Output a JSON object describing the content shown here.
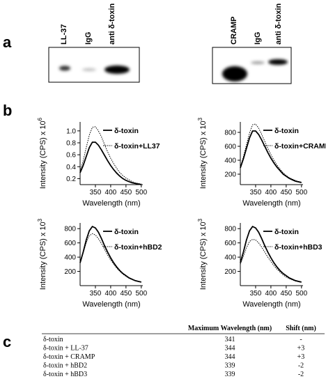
{
  "panel_labels": [
    "a",
    "b",
    "c"
  ],
  "blots": [
    {
      "lanes": [
        "LL-37",
        "IgG",
        "anti δ-toxin"
      ]
    },
    {
      "lanes": [
        "CRAMP",
        "IgG",
        "anti δ-toxin"
      ]
    }
  ],
  "chart_data": [
    {
      "type": "line",
      "y_label": "Intensity (CPS) x 10",
      "y_label_exponent": "6",
      "x_label": "Wavelength (nm)",
      "x": [
        300,
        310,
        320,
        330,
        340,
        350,
        360,
        370,
        380,
        390,
        400,
        410,
        420,
        430,
        440,
        450,
        460,
        470,
        480,
        490,
        500
      ],
      "series": [
        {
          "name": "δ-toxin",
          "style": "solid",
          "color": "#000000",
          "values": [
            0.3,
            0.42,
            0.57,
            0.72,
            0.81,
            0.81,
            0.76,
            0.68,
            0.59,
            0.5,
            0.42,
            0.35,
            0.29,
            0.24,
            0.2,
            0.17,
            0.15,
            0.13,
            0.12,
            0.11,
            0.1
          ]
        },
        {
          "name": "δ-toxin+LL37",
          "style": "dotted",
          "color": "#000000",
          "values": [
            0.32,
            0.5,
            0.72,
            0.93,
            1.06,
            1.07,
            1.0,
            0.9,
            0.77,
            0.65,
            0.54,
            0.45,
            0.37,
            0.3,
            0.25,
            0.21,
            0.18,
            0.15,
            0.13,
            0.12,
            0.11
          ]
        }
      ],
      "xlim": [
        300,
        505
      ],
      "xticks": [
        350,
        400,
        450,
        500
      ],
      "ylim": [
        0.1,
        1.15
      ],
      "yticks": [
        0.2,
        0.4,
        0.6,
        0.8,
        {
          "value": 1,
          "label": "1.0"
        }
      ]
    },
    {
      "type": "line",
      "y_label": "Intensity (CPS) x 10",
      "y_label_exponent": "3",
      "x_label": "Wavelength (nm)",
      "x": [
        300,
        310,
        320,
        330,
        340,
        350,
        360,
        370,
        380,
        390,
        400,
        410,
        420,
        430,
        440,
        450,
        460,
        470,
        480,
        490,
        500
      ],
      "series": [
        {
          "name": "δ-toxin",
          "style": "solid",
          "color": "#000000",
          "values": [
            290,
            420,
            570,
            720,
            820,
            820,
            770,
            690,
            600,
            510,
            430,
            360,
            300,
            250,
            200,
            170,
            140,
            120,
            100,
            90,
            80
          ]
        },
        {
          "name": "δ-toxin+CRAMP",
          "style": "dotted",
          "color": "#000000",
          "values": [
            300,
            450,
            620,
            790,
            910,
            920,
            860,
            770,
            670,
            570,
            480,
            400,
            330,
            270,
            220,
            180,
            150,
            130,
            110,
            95,
            85
          ]
        }
      ],
      "xlim": [
        300,
        505
      ],
      "xticks": [
        350,
        400,
        450,
        500
      ],
      "ylim": [
        50,
        950
      ],
      "yticks": [
        200,
        400,
        600,
        800
      ]
    },
    {
      "type": "line",
      "y_label": "Intensity (CPS) x 10",
      "y_label_exponent": "3",
      "x_label": "Wavelength (nm)",
      "x": [
        300,
        310,
        320,
        330,
        340,
        350,
        360,
        370,
        380,
        390,
        400,
        410,
        420,
        430,
        440,
        450,
        460,
        470,
        480,
        490,
        500
      ],
      "series": [
        {
          "name": "δ-toxin",
          "style": "solid",
          "color": "#000000",
          "values": [
            320,
            470,
            640,
            770,
            830,
            810,
            750,
            660,
            560,
            470,
            390,
            320,
            260,
            210,
            170,
            140,
            110,
            90,
            70,
            60,
            50
          ]
        },
        {
          "name": "δ-toxin+hBD2",
          "style": "dotted",
          "color": "#000000",
          "values": [
            330,
            460,
            600,
            700,
            730,
            710,
            660,
            590,
            510,
            430,
            360,
            300,
            245,
            200,
            160,
            130,
            105,
            85,
            70,
            60,
            50
          ]
        }
      ],
      "xlim": [
        300,
        505
      ],
      "xticks": [
        350,
        400,
        450,
        500
      ],
      "ylim": [
        0,
        880
      ],
      "yticks": [
        200,
        400,
        600,
        800
      ]
    },
    {
      "type": "line",
      "y_label": "Intensity (CPS) x 10",
      "y_label_exponent": "3",
      "x_label": "Wavelength (nm)",
      "x": [
        300,
        310,
        320,
        330,
        340,
        350,
        360,
        370,
        380,
        390,
        400,
        410,
        420,
        430,
        440,
        450,
        460,
        470,
        480,
        490,
        500
      ],
      "series": [
        {
          "name": "δ-toxin",
          "style": "solid",
          "color": "#000000",
          "values": [
            320,
            470,
            640,
            770,
            830,
            810,
            750,
            660,
            560,
            470,
            390,
            320,
            260,
            210,
            170,
            140,
            110,
            90,
            70,
            60,
            50
          ]
        },
        {
          "name": "δ-toxin+hBD3",
          "style": "dotted",
          "color": "#000000",
          "values": [
            300,
            410,
            530,
            620,
            650,
            640,
            600,
            540,
            470,
            400,
            340,
            280,
            230,
            190,
            150,
            120,
            100,
            80,
            65,
            55,
            45
          ]
        }
      ],
      "xlim": [
        300,
        505
      ],
      "xticks": [
        350,
        400,
        450,
        500
      ],
      "ylim": [
        0,
        880
      ],
      "yticks": [
        200,
        400,
        600,
        800
      ]
    }
  ],
  "table": {
    "columns": [
      "Maximum Wavelength (nm)",
      "Shift (nm)"
    ],
    "rows": [
      [
        "δ-toxin",
        341,
        "-"
      ],
      [
        "δ-toxin + LL-37",
        344,
        "+3"
      ],
      [
        "δ-toxin + CRAMP",
        344,
        "+3"
      ],
      [
        "δ-toxin + hBD2",
        339,
        "-2"
      ],
      [
        "δ-toxin + hBD3",
        339,
        "-2"
      ]
    ]
  }
}
